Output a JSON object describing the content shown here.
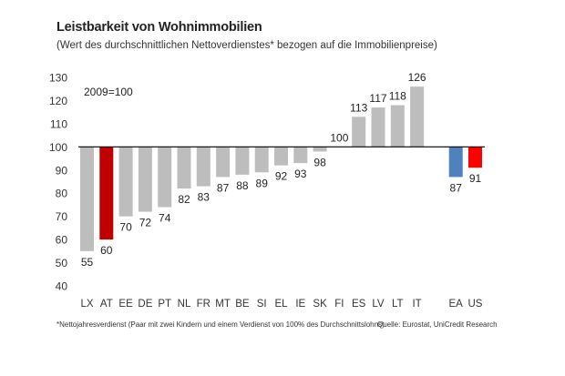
{
  "header": {
    "title": "Leistbarkeit von Wohnimmobilien",
    "subtitle": "(Wert des durchschnittlichen Nettoverdienstes* bezogen auf die Immobilienpreise)"
  },
  "footer": {
    "footnote": "*Nettojahresverdienst (Paar mit zwei Kindern und einem Verdienst von 100% des Durchschnittslohns)",
    "source": "Quelle: Eurostat, UniCredit Research"
  },
  "colors": {
    "default_bar": "#bdbdbd",
    "highlight_at": "#c00000",
    "ea": "#4f81bd",
    "us": "#ff0000",
    "baseline": "#000000"
  },
  "chart_data": {
    "type": "bar",
    "annotation": "2009=100",
    "baseline": 100,
    "ylim": [
      40,
      130
    ],
    "yticks": [
      40,
      50,
      60,
      70,
      80,
      90,
      100,
      110,
      120,
      130
    ],
    "grid": false,
    "categories": [
      "LX",
      "AT",
      "EE",
      "DE",
      "PT",
      "NL",
      "FR",
      "MT",
      "BE",
      "SI",
      "EL",
      "IE",
      "SK",
      "FI",
      "ES",
      "LV",
      "LT",
      "IT",
      "",
      "EA",
      "US"
    ],
    "values": [
      55,
      60,
      70,
      72,
      74,
      82,
      83,
      87,
      88,
      89,
      92,
      93,
      98,
      100,
      113,
      117,
      118,
      126,
      null,
      87,
      91
    ],
    "bar_colors": [
      "default_bar",
      "highlight_at",
      "default_bar",
      "default_bar",
      "default_bar",
      "default_bar",
      "default_bar",
      "default_bar",
      "default_bar",
      "default_bar",
      "default_bar",
      "default_bar",
      "default_bar",
      "default_bar",
      "default_bar",
      "default_bar",
      "default_bar",
      "default_bar",
      "",
      "ea",
      "us"
    ]
  }
}
